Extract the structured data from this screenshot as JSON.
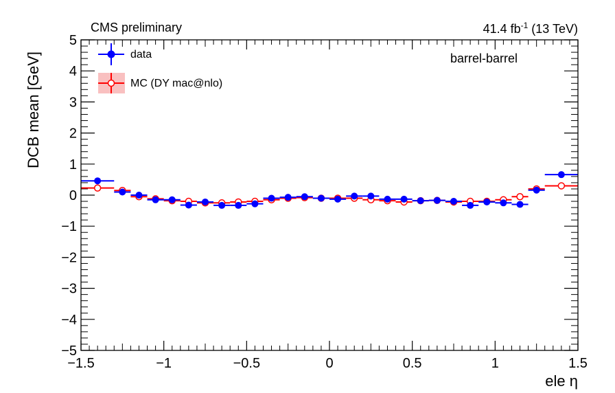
{
  "header": {
    "experiment": "CMS preliminary",
    "lumi_value": "41.4 fb",
    "lumi_exp": "-1",
    "energy": "(13 TeV)"
  },
  "colors": {
    "data": "#0000ff",
    "mc": "#ff0000",
    "mc_band": "#f9c0c0",
    "frame": "#000000"
  },
  "chart_data": {
    "type": "scatter",
    "title": "",
    "xlabel": "ele η",
    "ylabel": "DCB mean [GeV]",
    "xlim": [
      -1.5,
      1.5
    ],
    "ylim": [
      -5,
      5
    ],
    "category_label": "barrel-barrel",
    "legend_position": "top-left",
    "x_tick_labels": [
      "−1.5",
      "−1",
      "−0.5",
      "0",
      "0.5",
      "1",
      "1.5"
    ],
    "y_tick_labels": [
      "−5",
      "−4",
      "−3",
      "−2",
      "−1",
      "0",
      "1",
      "2",
      "3",
      "4",
      "5"
    ],
    "series": [
      {
        "name": "data",
        "marker": "filled-circle",
        "x": [
          -1.4,
          -1.25,
          -1.15,
          -1.05,
          -0.95,
          -0.85,
          -0.75,
          -0.65,
          -0.55,
          -0.45,
          -0.35,
          -0.25,
          -0.15,
          -0.05,
          0.05,
          0.15,
          0.25,
          0.35,
          0.45,
          0.55,
          0.65,
          0.75,
          0.85,
          0.95,
          1.05,
          1.15,
          1.25,
          1.4
        ],
        "x_halfwidth": [
          0.1,
          0.05,
          0.05,
          0.05,
          0.05,
          0.05,
          0.05,
          0.05,
          0.05,
          0.05,
          0.05,
          0.05,
          0.05,
          0.05,
          0.05,
          0.05,
          0.05,
          0.05,
          0.05,
          0.05,
          0.05,
          0.05,
          0.05,
          0.05,
          0.05,
          0.05,
          0.05,
          0.1
        ],
        "values": [
          0.46,
          0.1,
          0.0,
          -0.15,
          -0.15,
          -0.32,
          -0.22,
          -0.33,
          -0.33,
          -0.28,
          -0.1,
          -0.07,
          -0.05,
          -0.1,
          -0.13,
          -0.03,
          -0.03,
          -0.13,
          -0.13,
          -0.18,
          -0.17,
          -0.2,
          -0.33,
          -0.22,
          -0.25,
          -0.3,
          0.16,
          0.66
        ]
      },
      {
        "name": "MC (DY mac@nlo)",
        "marker": "open-circle",
        "x": [
          -1.4,
          -1.25,
          -1.15,
          -1.05,
          -0.95,
          -0.85,
          -0.75,
          -0.65,
          -0.55,
          -0.45,
          -0.35,
          -0.25,
          -0.15,
          -0.05,
          0.05,
          0.15,
          0.25,
          0.35,
          0.45,
          0.55,
          0.65,
          0.75,
          0.85,
          0.95,
          1.05,
          1.15,
          1.25,
          1.4
        ],
        "x_halfwidth": [
          0.1,
          0.05,
          0.05,
          0.05,
          0.05,
          0.05,
          0.05,
          0.05,
          0.05,
          0.05,
          0.05,
          0.05,
          0.05,
          0.05,
          0.05,
          0.05,
          0.05,
          0.05,
          0.05,
          0.05,
          0.05,
          0.05,
          0.05,
          0.05,
          0.05,
          0.05,
          0.05,
          0.1
        ],
        "values": [
          0.23,
          0.15,
          -0.05,
          -0.12,
          -0.18,
          -0.2,
          -0.25,
          -0.25,
          -0.22,
          -0.2,
          -0.15,
          -0.1,
          -0.08,
          -0.1,
          -0.1,
          -0.1,
          -0.15,
          -0.18,
          -0.22,
          -0.18,
          -0.17,
          -0.22,
          -0.2,
          -0.2,
          -0.15,
          -0.05,
          0.2,
          0.3
        ]
      }
    ]
  }
}
